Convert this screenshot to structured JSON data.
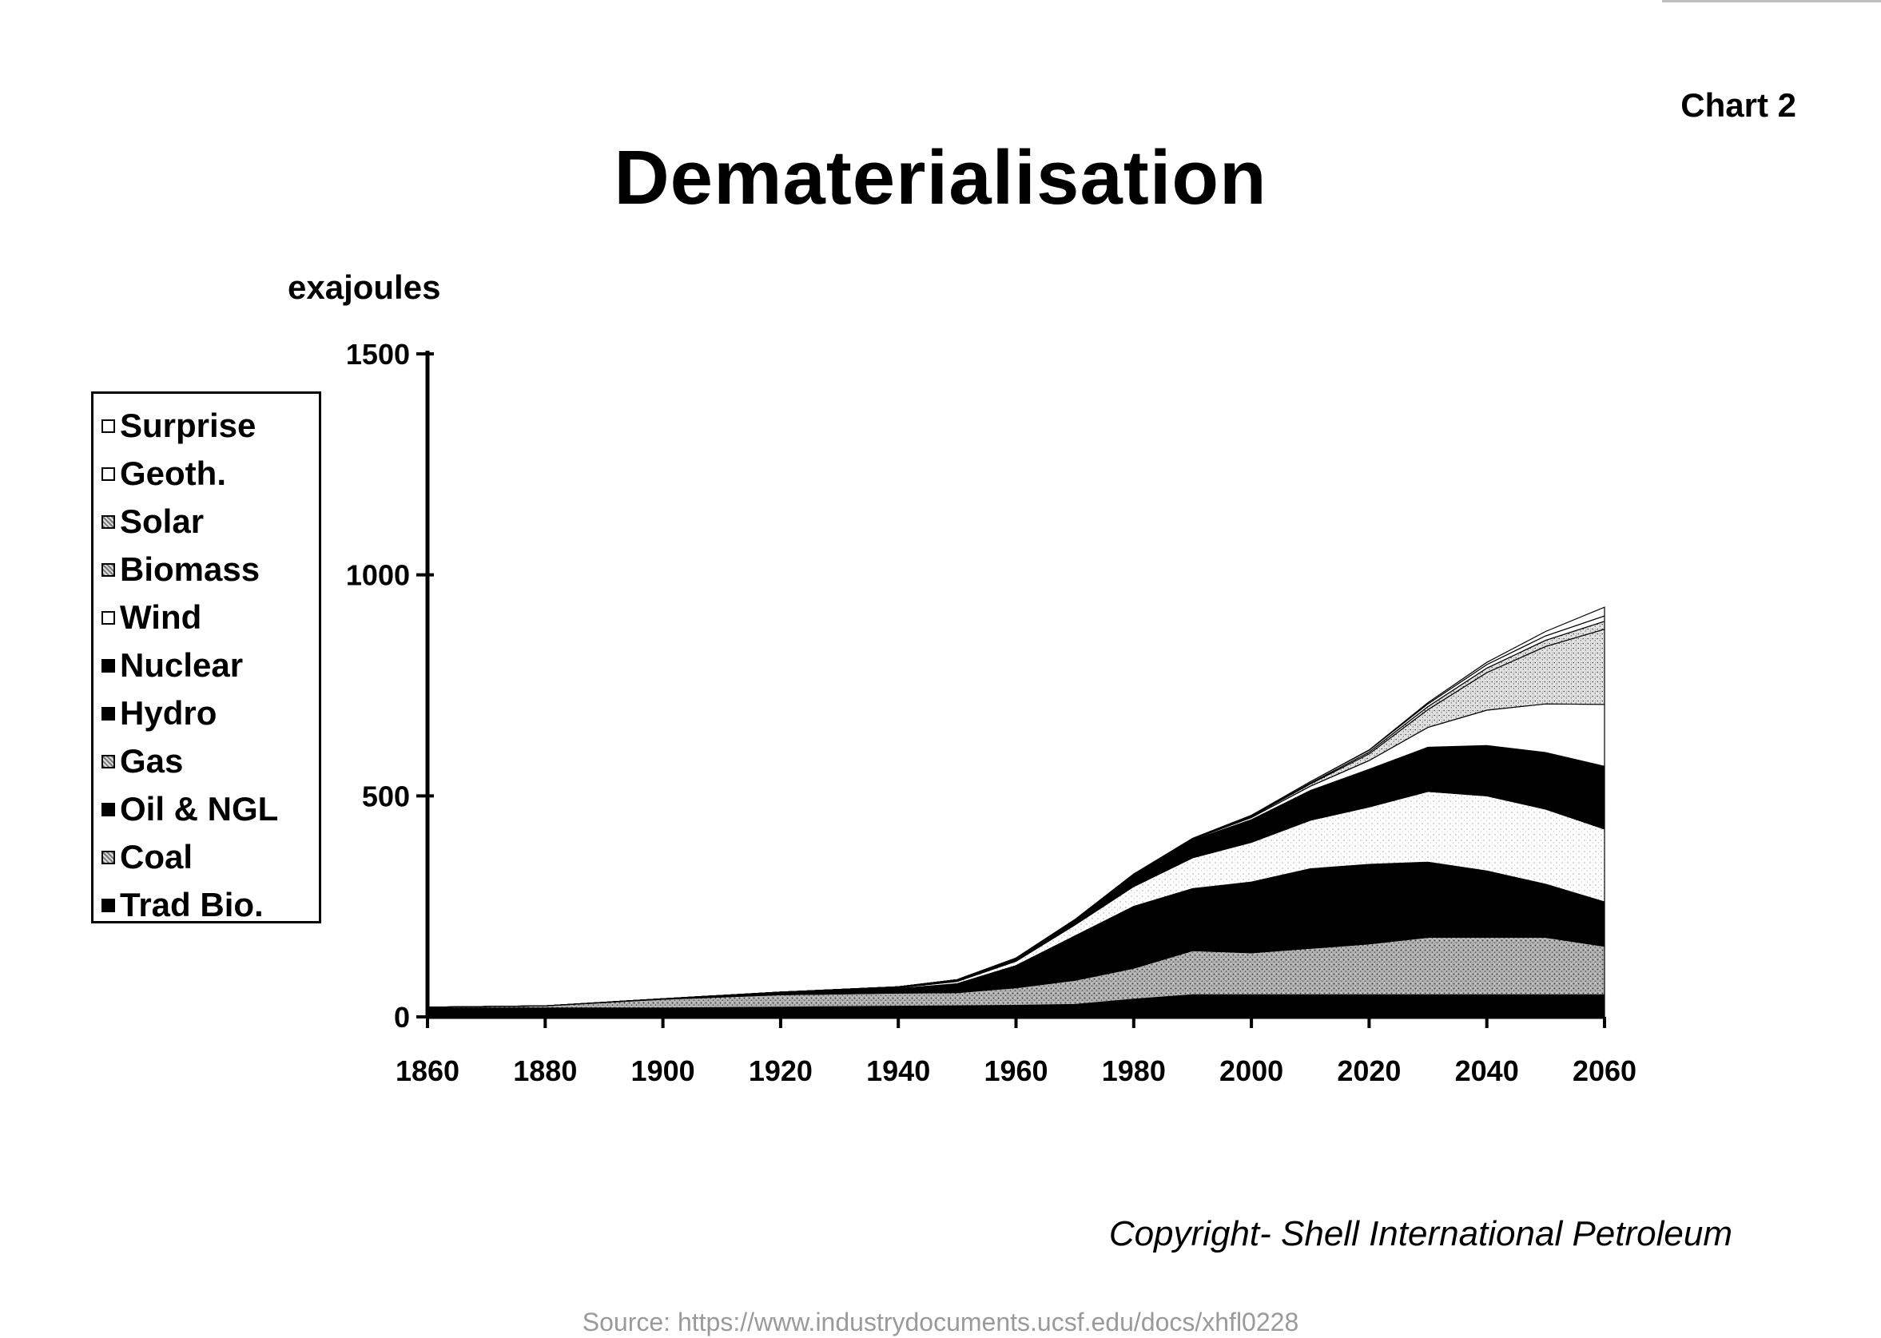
{
  "chart_number": "Chart 2",
  "copyright": "Copyright- Shell International Petroleum",
  "source": "Source: https://www.industrydocuments.ucsf.edu/docs/xhfl0228",
  "chart_data": {
    "type": "area",
    "stacked": true,
    "title": "Dematerialisation",
    "ylabel": "exajoules",
    "xlabel": "",
    "xlim": [
      1860,
      2060
    ],
    "ylim": [
      0,
      1500
    ],
    "x_ticks": [
      1860,
      1880,
      1900,
      1920,
      1940,
      1960,
      1980,
      2000,
      2020,
      2040,
      2060
    ],
    "y_ticks": [
      0,
      500,
      1000,
      1500
    ],
    "grid": false,
    "legend_position": "left",
    "x": [
      1860,
      1880,
      1900,
      1920,
      1940,
      1950,
      1960,
      1970,
      1980,
      1990,
      2000,
      2010,
      2020,
      2030,
      2040,
      2050,
      2060
    ],
    "series": [
      {
        "name": "Trad Bio.",
        "fill": "#000000",
        "pattern": "solid",
        "values": [
          20,
          20,
          20,
          22,
          24,
          25,
          26,
          28,
          40,
          50,
          50,
          50,
          50,
          50,
          50,
          50,
          50
        ]
      },
      {
        "name": "Coal",
        "fill": "#bdbdbd",
        "pattern": "stipple",
        "values": [
          2,
          5,
          20,
          28,
          30,
          30,
          40,
          55,
          70,
          100,
          95,
          105,
          115,
          130,
          130,
          130,
          110
        ]
      },
      {
        "name": "Oil & NGL",
        "fill": "#000000",
        "pattern": "solid",
        "values": [
          0,
          0,
          1,
          5,
          10,
          20,
          50,
          100,
          140,
          140,
          160,
          180,
          180,
          170,
          150,
          120,
          100
        ]
      },
      {
        "name": "Gas",
        "fill": "#f2f2f2",
        "pattern": "stipple",
        "values": [
          0,
          0,
          0,
          0,
          2,
          5,
          10,
          25,
          45,
          70,
          90,
          110,
          130,
          160,
          170,
          170,
          165
        ]
      },
      {
        "name": "Hydro",
        "fill": "#000000",
        "pattern": "solid",
        "values": [
          0,
          0,
          0,
          1,
          2,
          4,
          6,
          9,
          12,
          15,
          18,
          22,
          25,
          30,
          34,
          38,
          42
        ]
      },
      {
        "name": "Nuclear",
        "fill": "#000000",
        "pattern": "solid",
        "values": [
          0,
          0,
          0,
          0,
          0,
          0,
          1,
          3,
          15,
          25,
          33,
          45,
          60,
          70,
          80,
          90,
          100
        ]
      },
      {
        "name": "Wind",
        "fill": "#ffffff",
        "pattern": "solid",
        "values": [
          0,
          0,
          0,
          0,
          0,
          0,
          0,
          0,
          1,
          2,
          5,
          10,
          20,
          45,
          80,
          110,
          140
        ]
      },
      {
        "name": "Biomass",
        "fill": "#cfcfcf",
        "pattern": "stipple",
        "values": [
          0,
          0,
          0,
          0,
          0,
          0,
          0,
          0,
          0,
          1,
          2,
          5,
          15,
          40,
          85,
          130,
          170
        ]
      },
      {
        "name": "Solar",
        "fill": "#d9d9d9",
        "pattern": "stipple",
        "values": [
          0,
          0,
          0,
          0,
          0,
          0,
          0,
          0,
          0,
          0,
          1,
          2,
          4,
          7,
          10,
          14,
          18
        ]
      },
      {
        "name": "Geoth.",
        "fill": "#ffffff",
        "pattern": "solid",
        "values": [
          0,
          0,
          0,
          0,
          0,
          0,
          0,
          0,
          0,
          1,
          2,
          3,
          4,
          6,
          8,
          10,
          12
        ]
      },
      {
        "name": "Surprise",
        "fill": "#ffffff",
        "pattern": "solid",
        "values": [
          0,
          0,
          0,
          0,
          0,
          0,
          0,
          0,
          0,
          0,
          0,
          0,
          1,
          3,
          5,
          10,
          20
        ]
      }
    ],
    "legend_order": [
      "Surprise",
      "Geoth.",
      "Solar",
      "Biomass",
      "Wind",
      "Nuclear",
      "Hydro",
      "Gas",
      "Oil & NGL",
      "Coal",
      "Trad Bio."
    ]
  }
}
